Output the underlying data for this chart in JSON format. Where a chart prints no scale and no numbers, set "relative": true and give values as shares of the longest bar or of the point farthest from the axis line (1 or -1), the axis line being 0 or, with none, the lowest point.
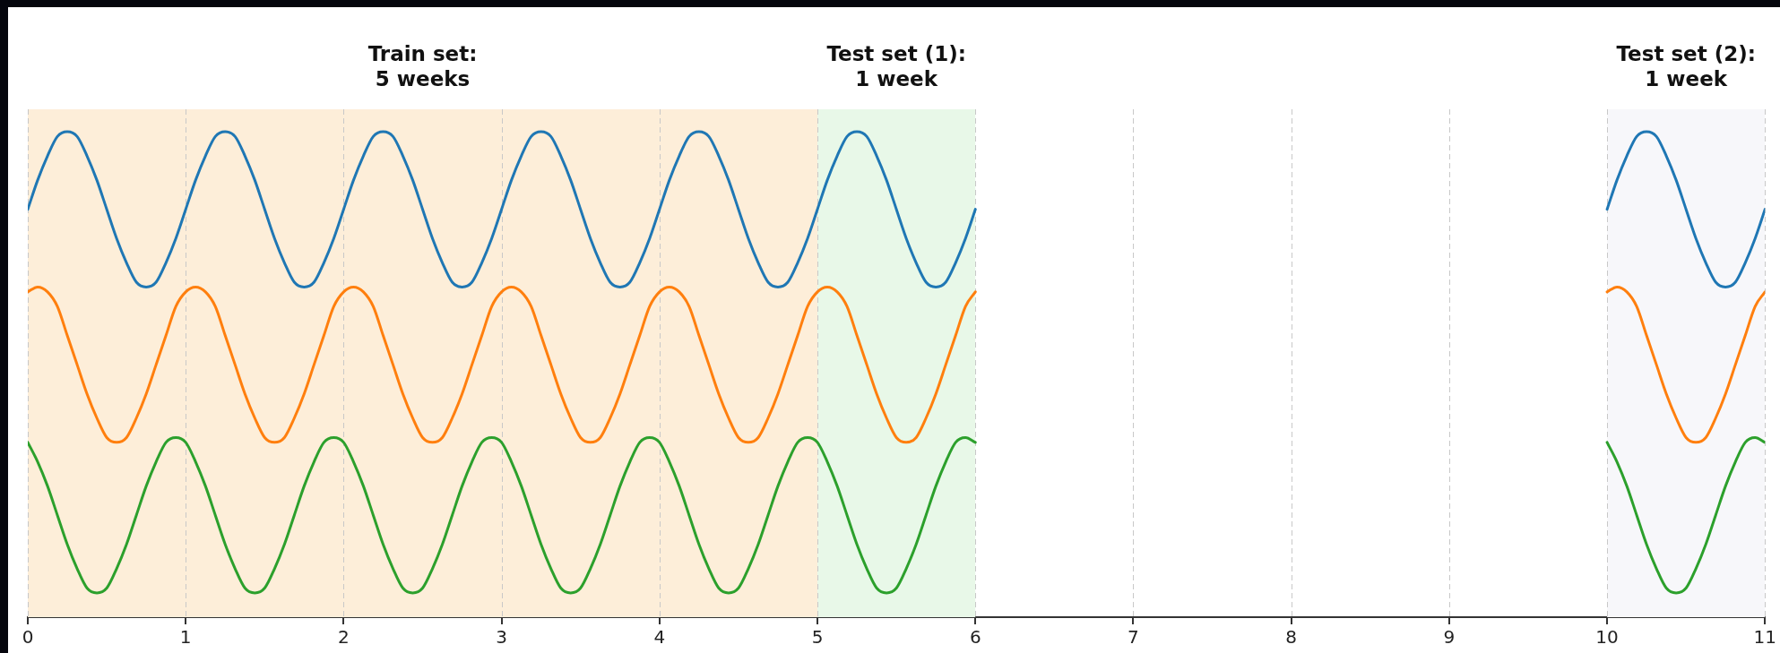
{
  "chart_data": {
    "type": "line",
    "relative": true,
    "x": [
      0,
      0.0625,
      0.125,
      0.1875,
      0.25,
      0.3125,
      0.375,
      0.4375,
      0.5,
      0.5625,
      0.625,
      0.6875,
      0.75,
      0.8125,
      0.875,
      0.9375,
      1,
      1.0625,
      1.125,
      1.1875,
      1.25,
      1.3125,
      1.375,
      1.4375,
      1.5,
      1.5625,
      1.625,
      1.6875,
      1.75,
      1.8125,
      1.875,
      1.9375,
      2,
      2.0625,
      2.125,
      2.1875,
      2.25,
      2.3125,
      2.375,
      2.4375,
      2.5,
      2.5625,
      2.625,
      2.6875,
      2.75,
      2.8125,
      2.875,
      2.9375,
      3,
      3.0625,
      3.125,
      3.1875,
      3.25,
      3.3125,
      3.375,
      3.4375,
      3.5,
      3.5625,
      3.625,
      3.6875,
      3.75,
      3.8125,
      3.875,
      3.9375,
      4,
      4.0625,
      4.125,
      4.1875,
      4.25,
      4.3125,
      4.375,
      4.4375,
      4.5,
      4.5625,
      4.625,
      4.6875,
      4.75,
      4.8125,
      4.875,
      4.9375,
      5,
      5.0625,
      5.125,
      5.1875,
      5.25,
      5.3125,
      5.375,
      5.4375,
      5.5,
      5.5625,
      5.625,
      5.6875,
      5.75,
      5.8125,
      5.875,
      5.9375,
      6,
      8,
      10,
      10.0625,
      10.125,
      10.1875,
      10.25,
      10.3125,
      10.375,
      10.4375,
      10.5,
      10.5625,
      10.625,
      10.6875,
      10.75,
      10.8125,
      10.875,
      10.9375,
      11
    ],
    "series": [
      {
        "color": "#1f77b4",
        "values": [
          0.84,
          0.9,
          0.95,
          0.99,
          1,
          0.99,
          0.95,
          0.9,
          0.84,
          0.78,
          0.73,
          0.69,
          0.68,
          0.69,
          0.73,
          0.78,
          0.84,
          0.9,
          0.95,
          0.99,
          1,
          0.99,
          0.95,
          0.9,
          0.84,
          0.78,
          0.73,
          0.69,
          0.68,
          0.69,
          0.73,
          0.78,
          0.84,
          0.9,
          0.95,
          0.99,
          1,
          0.99,
          0.95,
          0.9,
          0.84,
          0.78,
          0.73,
          0.69,
          0.68,
          0.69,
          0.73,
          0.78,
          0.84,
          0.9,
          0.95,
          0.99,
          1,
          0.99,
          0.95,
          0.9,
          0.84,
          0.78,
          0.73,
          0.69,
          0.68,
          0.69,
          0.73,
          0.78,
          0.84,
          0.9,
          0.95,
          0.99,
          1,
          0.99,
          0.95,
          0.9,
          0.84,
          0.78,
          0.73,
          0.69,
          0.68,
          0.69,
          0.73,
          0.78,
          0.84,
          0.9,
          0.95,
          0.99,
          1,
          0.99,
          0.95,
          0.9,
          0.84,
          0.78,
          0.73,
          0.69,
          0.68,
          0.69,
          0.73,
          0.78,
          0.84,
          null,
          0.84,
          0.9,
          0.95,
          0.99,
          1,
          0.99,
          0.95,
          0.9,
          0.84,
          0.78,
          0.73,
          0.69,
          0.68,
          0.69,
          0.73,
          0.78,
          0.84
        ]
      },
      {
        "color": "#ff7f0e",
        "values": [
          0.67,
          0.68,
          0.67,
          0.64,
          0.58,
          0.52,
          0.46,
          0.41,
          0.37,
          0.36,
          0.37,
          0.41,
          0.46,
          0.52,
          0.58,
          0.64,
          0.67,
          0.68,
          0.67,
          0.64,
          0.58,
          0.52,
          0.46,
          0.41,
          0.37,
          0.36,
          0.37,
          0.41,
          0.46,
          0.52,
          0.58,
          0.64,
          0.67,
          0.68,
          0.67,
          0.64,
          0.58,
          0.52,
          0.46,
          0.41,
          0.37,
          0.36,
          0.37,
          0.41,
          0.46,
          0.52,
          0.58,
          0.64,
          0.67,
          0.68,
          0.67,
          0.64,
          0.58,
          0.52,
          0.46,
          0.41,
          0.37,
          0.36,
          0.37,
          0.41,
          0.46,
          0.52,
          0.58,
          0.64,
          0.67,
          0.68,
          0.67,
          0.64,
          0.58,
          0.52,
          0.46,
          0.41,
          0.37,
          0.36,
          0.37,
          0.41,
          0.46,
          0.52,
          0.58,
          0.64,
          0.67,
          0.68,
          0.67,
          0.64,
          0.58,
          0.52,
          0.46,
          0.41,
          0.37,
          0.36,
          0.37,
          0.41,
          0.46,
          0.52,
          0.58,
          0.64,
          0.67,
          null,
          0.67,
          0.68,
          0.67,
          0.64,
          0.58,
          0.52,
          0.46,
          0.41,
          0.37,
          0.36,
          0.37,
          0.41,
          0.46,
          0.52,
          0.58,
          0.64,
          0.67
        ]
      },
      {
        "color": "#2ca02c",
        "values": [
          0.36,
          0.32,
          0.27,
          0.21,
          0.15,
          0.1,
          0.06,
          0.05,
          0.06,
          0.1,
          0.15,
          0.21,
          0.27,
          0.32,
          0.36,
          0.37,
          0.36,
          0.32,
          0.27,
          0.21,
          0.15,
          0.1,
          0.06,
          0.05,
          0.06,
          0.1,
          0.15,
          0.21,
          0.27,
          0.32,
          0.36,
          0.37,
          0.36,
          0.32,
          0.27,
          0.21,
          0.15,
          0.1,
          0.06,
          0.05,
          0.06,
          0.1,
          0.15,
          0.21,
          0.27,
          0.32,
          0.36,
          0.37,
          0.36,
          0.32,
          0.27,
          0.21,
          0.15,
          0.1,
          0.06,
          0.05,
          0.06,
          0.1,
          0.15,
          0.21,
          0.27,
          0.32,
          0.36,
          0.37,
          0.36,
          0.32,
          0.27,
          0.21,
          0.15,
          0.1,
          0.06,
          0.05,
          0.06,
          0.1,
          0.15,
          0.21,
          0.27,
          0.32,
          0.36,
          0.37,
          0.36,
          0.32,
          0.27,
          0.21,
          0.15,
          0.1,
          0.06,
          0.05,
          0.06,
          0.1,
          0.15,
          0.21,
          0.27,
          0.32,
          0.36,
          0.37,
          0.36,
          null,
          0.36,
          0.32,
          0.27,
          0.21,
          0.15,
          0.1,
          0.06,
          0.05,
          0.06,
          0.1,
          0.15,
          0.21,
          0.27,
          0.32,
          0.36,
          0.37,
          0.36
        ]
      }
    ],
    "xlim": [
      0,
      11
    ],
    "xticks": [
      0,
      1,
      2,
      3,
      4,
      5,
      6,
      7,
      8,
      9,
      10,
      11
    ],
    "grid": "x",
    "tick_labels": "x",
    "legend": false,
    "marker": "none",
    "line_style": "solid",
    "bands": [
      {
        "axis": "x",
        "from": 0,
        "to": 5,
        "label": "Train set:\n5 weeks",
        "color": "#fdeed9"
      },
      {
        "axis": "x",
        "from": 5,
        "to": 6,
        "label": "Test set (1):\n1 week",
        "color": "#e8f8e8"
      },
      {
        "axis": "x",
        "from": 10,
        "to": 11,
        "label": "Test set (2):\n1 week",
        "color": "#f7f7fa"
      }
    ]
  }
}
